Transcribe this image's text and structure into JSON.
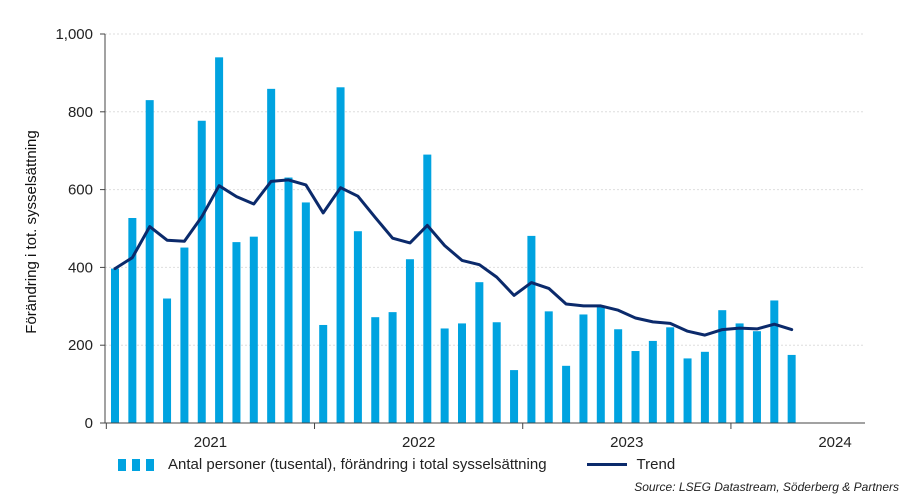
{
  "chart_data": {
    "type": "bar",
    "ylabel": "Förändring i tot. sysselsättning",
    "ylim": [
      0,
      1000
    ],
    "yticks": [
      0,
      200,
      400,
      600,
      800,
      1000
    ],
    "ytick_labels": [
      "0",
      "200",
      "400",
      "600",
      "800",
      "1,000"
    ],
    "year_labels": [
      "2021",
      "2022",
      "2023",
      "2024"
    ],
    "months": [
      "2021-01",
      "2021-02",
      "2021-03",
      "2021-04",
      "2021-05",
      "2021-06",
      "2021-07",
      "2021-08",
      "2021-09",
      "2021-10",
      "2021-11",
      "2021-12",
      "2022-01",
      "2022-02",
      "2022-03",
      "2022-04",
      "2022-05",
      "2022-06",
      "2022-07",
      "2022-08",
      "2022-09",
      "2022-10",
      "2022-11",
      "2022-12",
      "2023-01",
      "2023-02",
      "2023-03",
      "2023-04",
      "2023-05",
      "2023-06",
      "2023-07",
      "2023-08",
      "2023-09",
      "2023-10",
      "2023-11",
      "2023-12",
      "2024-01",
      "2024-02",
      "2024-03",
      "2024-04"
    ],
    "series": [
      {
        "name": "Antal personer (tusental), förändring i total sysselsättning",
        "kind": "bar",
        "color": "#00a3e0",
        "values": [
          397,
          527,
          830,
          320,
          451,
          777,
          940,
          465,
          479,
          859,
          631,
          567,
          252,
          863,
          493,
          272,
          285,
          421,
          690,
          243,
          256,
          362,
          259,
          136,
          481,
          287,
          147,
          279,
          301,
          241,
          185,
          211,
          246,
          166,
          183,
          290,
          256,
          236,
          315,
          175
        ]
      },
      {
        "name": "Trend",
        "kind": "line",
        "color": "#0b2a6b",
        "values": [
          397,
          425,
          505,
          470,
          467,
          530,
          610,
          582,
          563,
          621,
          625,
          612,
          540,
          605,
          583,
          528,
          475,
          463,
          508,
          456,
          418,
          407,
          375,
          328,
          361,
          346,
          306,
          301,
          301,
          290,
          270,
          260,
          256,
          236,
          226,
          240,
          244,
          242,
          254,
          240
        ]
      }
    ]
  },
  "legend": {
    "bar_label": "Antal personer (tusental), förändring i total sysselsättning",
    "line_label": "Trend"
  },
  "source": "Source: LSEG Datastream, Söderberg & Partners"
}
